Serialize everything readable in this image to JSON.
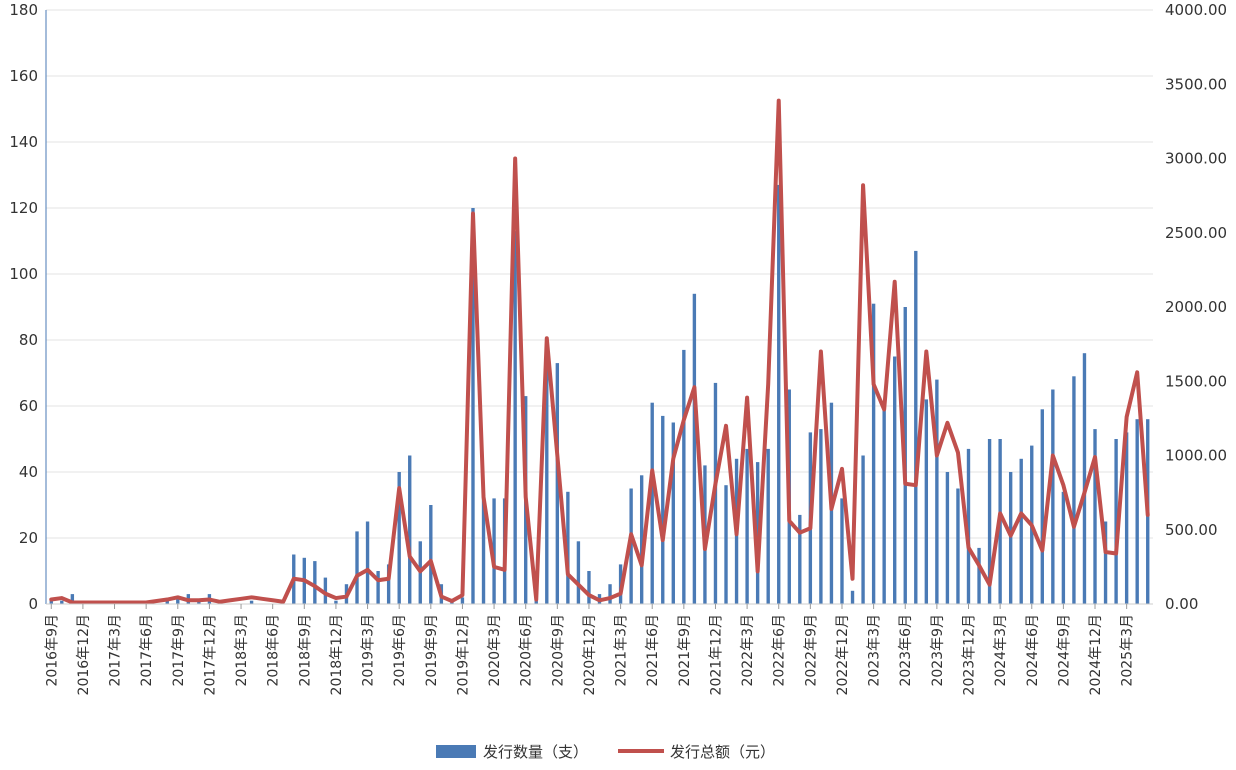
{
  "chart_data": {
    "type": "bar",
    "categories": [
      "2016年9月",
      "2016年10月",
      "2016年11月",
      "2016年12月",
      "2017年1月",
      "2017年2月",
      "2017年3月",
      "2017年4月",
      "2017年5月",
      "2017年6月",
      "2017年7月",
      "2017年8月",
      "2017年9月",
      "2017年10月",
      "2017年11月",
      "2017年12月",
      "2018年1月",
      "2018年2月",
      "2018年3月",
      "2018年4月",
      "2018年5月",
      "2018年6月",
      "2018年7月",
      "2018年8月",
      "2018年9月",
      "2018年10月",
      "2018年11月",
      "2018年12月",
      "2019年1月",
      "2019年2月",
      "2019年3月",
      "2019年4月",
      "2019年5月",
      "2019年6月",
      "2019年7月",
      "2019年8月",
      "2019年9月",
      "2019年10月",
      "2019年11月",
      "2019年12月",
      "2020年1月",
      "2020年2月",
      "2020年3月",
      "2020年4月",
      "2020年5月",
      "2020年6月",
      "2020年7月",
      "2020年8月",
      "2020年9月",
      "2020年10月",
      "2020年11月",
      "2020年12月",
      "2021年1月",
      "2021年2月",
      "2021年3月",
      "2021年4月",
      "2021年5月",
      "2021年6月",
      "2021年7月",
      "2021年8月",
      "2021年9月",
      "2021年10月",
      "2021年11月",
      "2021年12月",
      "2022年1月",
      "2022年2月",
      "2022年3月",
      "2022年4月",
      "2022年5月",
      "2022年6月",
      "2022年7月",
      "2022年8月",
      "2022年9月",
      "2022年10月",
      "2022年11月",
      "2022年12月",
      "2023年1月",
      "2023年2月",
      "2023年3月",
      "2023年4月",
      "2023年5月",
      "2023年6月",
      "2023年7月",
      "2023年8月",
      "2023年9月",
      "2023年10月",
      "2023年11月",
      "2023年12月",
      "2024年1月",
      "2024年2月",
      "2024年3月",
      "2024年4月",
      "2024年5月",
      "2024年6月",
      "2024年7月",
      "2024年8月",
      "2024年9月",
      "2024年10月",
      "2024年11月",
      "2024年12月",
      "2025年1月",
      "2025年2月",
      "2025年3月",
      "2025年4月",
      "2025年5月"
    ],
    "x_tick_labels": [
      "2016年9月",
      "2016年12月",
      "2017年3月",
      "2017年6月",
      "2017年9月",
      "2017年12月",
      "2018年3月",
      "2018年6月",
      "2018年9月",
      "2018年12月",
      "2019年3月",
      "2019年6月",
      "2019年9月",
      "2019年12月",
      "2020年3月",
      "2020年6月",
      "2020年9月",
      "2020年12月",
      "2021年3月",
      "2021年6月",
      "2021年9月",
      "2021年12月",
      "2022年3月",
      "2022年6月",
      "2022年9月",
      "2022年12月",
      "2023年3月",
      "2023年6月",
      "2023年9月",
      "2023年12月",
      "2024年3月",
      "2024年6月",
      "2024年9月",
      "2024年12月",
      "2025年3月"
    ],
    "series": [
      {
        "name": "发行数量（支）",
        "type": "bar",
        "axis": "left",
        "color": "#4a7ab5",
        "values": [
          1,
          1,
          3,
          0,
          0,
          0,
          0,
          0,
          1,
          1,
          0,
          1,
          2,
          3,
          1,
          3,
          1,
          0,
          0,
          1,
          0,
          0,
          0,
          15,
          14,
          13,
          8,
          1,
          6,
          22,
          25,
          10,
          12,
          40,
          45,
          19,
          30,
          6,
          1,
          2,
          120,
          33,
          32,
          32,
          113,
          63,
          3,
          73,
          73,
          34,
          19,
          10,
          3,
          6,
          12,
          35,
          39,
          61,
          57,
          55,
          77,
          94,
          42,
          67,
          36,
          44,
          47,
          43,
          47,
          127,
          65,
          27,
          52,
          53,
          61,
          32,
          4,
          45,
          91,
          59,
          75,
          90,
          107,
          62,
          68,
          40,
          35,
          47,
          17,
          50,
          50,
          40,
          44,
          48,
          59,
          65,
          34,
          69,
          76,
          53,
          25,
          50,
          52,
          56,
          56
        ]
      },
      {
        "name": "发行总额（元）",
        "type": "line",
        "axis": "right",
        "color": "#c0504d",
        "values": [
          30,
          40,
          10,
          10,
          10,
          10,
          10,
          10,
          10,
          10,
          20,
          30,
          45,
          25,
          25,
          30,
          15,
          25,
          35,
          45,
          35,
          25,
          15,
          170,
          160,
          120,
          70,
          40,
          50,
          190,
          230,
          160,
          170,
          780,
          320,
          220,
          290,
          50,
          20,
          60,
          2630,
          720,
          250,
          230,
          3000,
          720,
          30,
          1790,
          1000,
          200,
          130,
          60,
          25,
          40,
          70,
          470,
          260,
          900,
          430,
          980,
          1240,
          1460,
          370,
          810,
          1200,
          470,
          1390,
          220,
          1480,
          3390,
          560,
          480,
          510,
          1700,
          640,
          910,
          170,
          2820,
          1480,
          1310,
          2170,
          810,
          800,
          1700,
          1000,
          1220,
          1020,
          380,
          260,
          130,
          610,
          460,
          610,
          530,
          360,
          1000,
          800,
          520,
          750,
          990,
          350,
          340,
          1260,
          1560,
          600
        ]
      }
    ],
    "y_left": {
      "min": 0,
      "max": 180,
      "ticks": [
        "0",
        "20",
        "40",
        "60",
        "80",
        "100",
        "120",
        "140",
        "160",
        "180"
      ]
    },
    "y_right": {
      "min": 0,
      "max": 4000,
      "ticks": [
        "0.00",
        "500.00",
        "1000.00",
        "1500.00",
        "2000.00",
        "2500.00",
        "3000.00",
        "3500.00",
        "4000.00"
      ]
    },
    "grid": true,
    "legend_position": "bottom-center",
    "title": "",
    "xlabel": "",
    "ylabel": ""
  }
}
